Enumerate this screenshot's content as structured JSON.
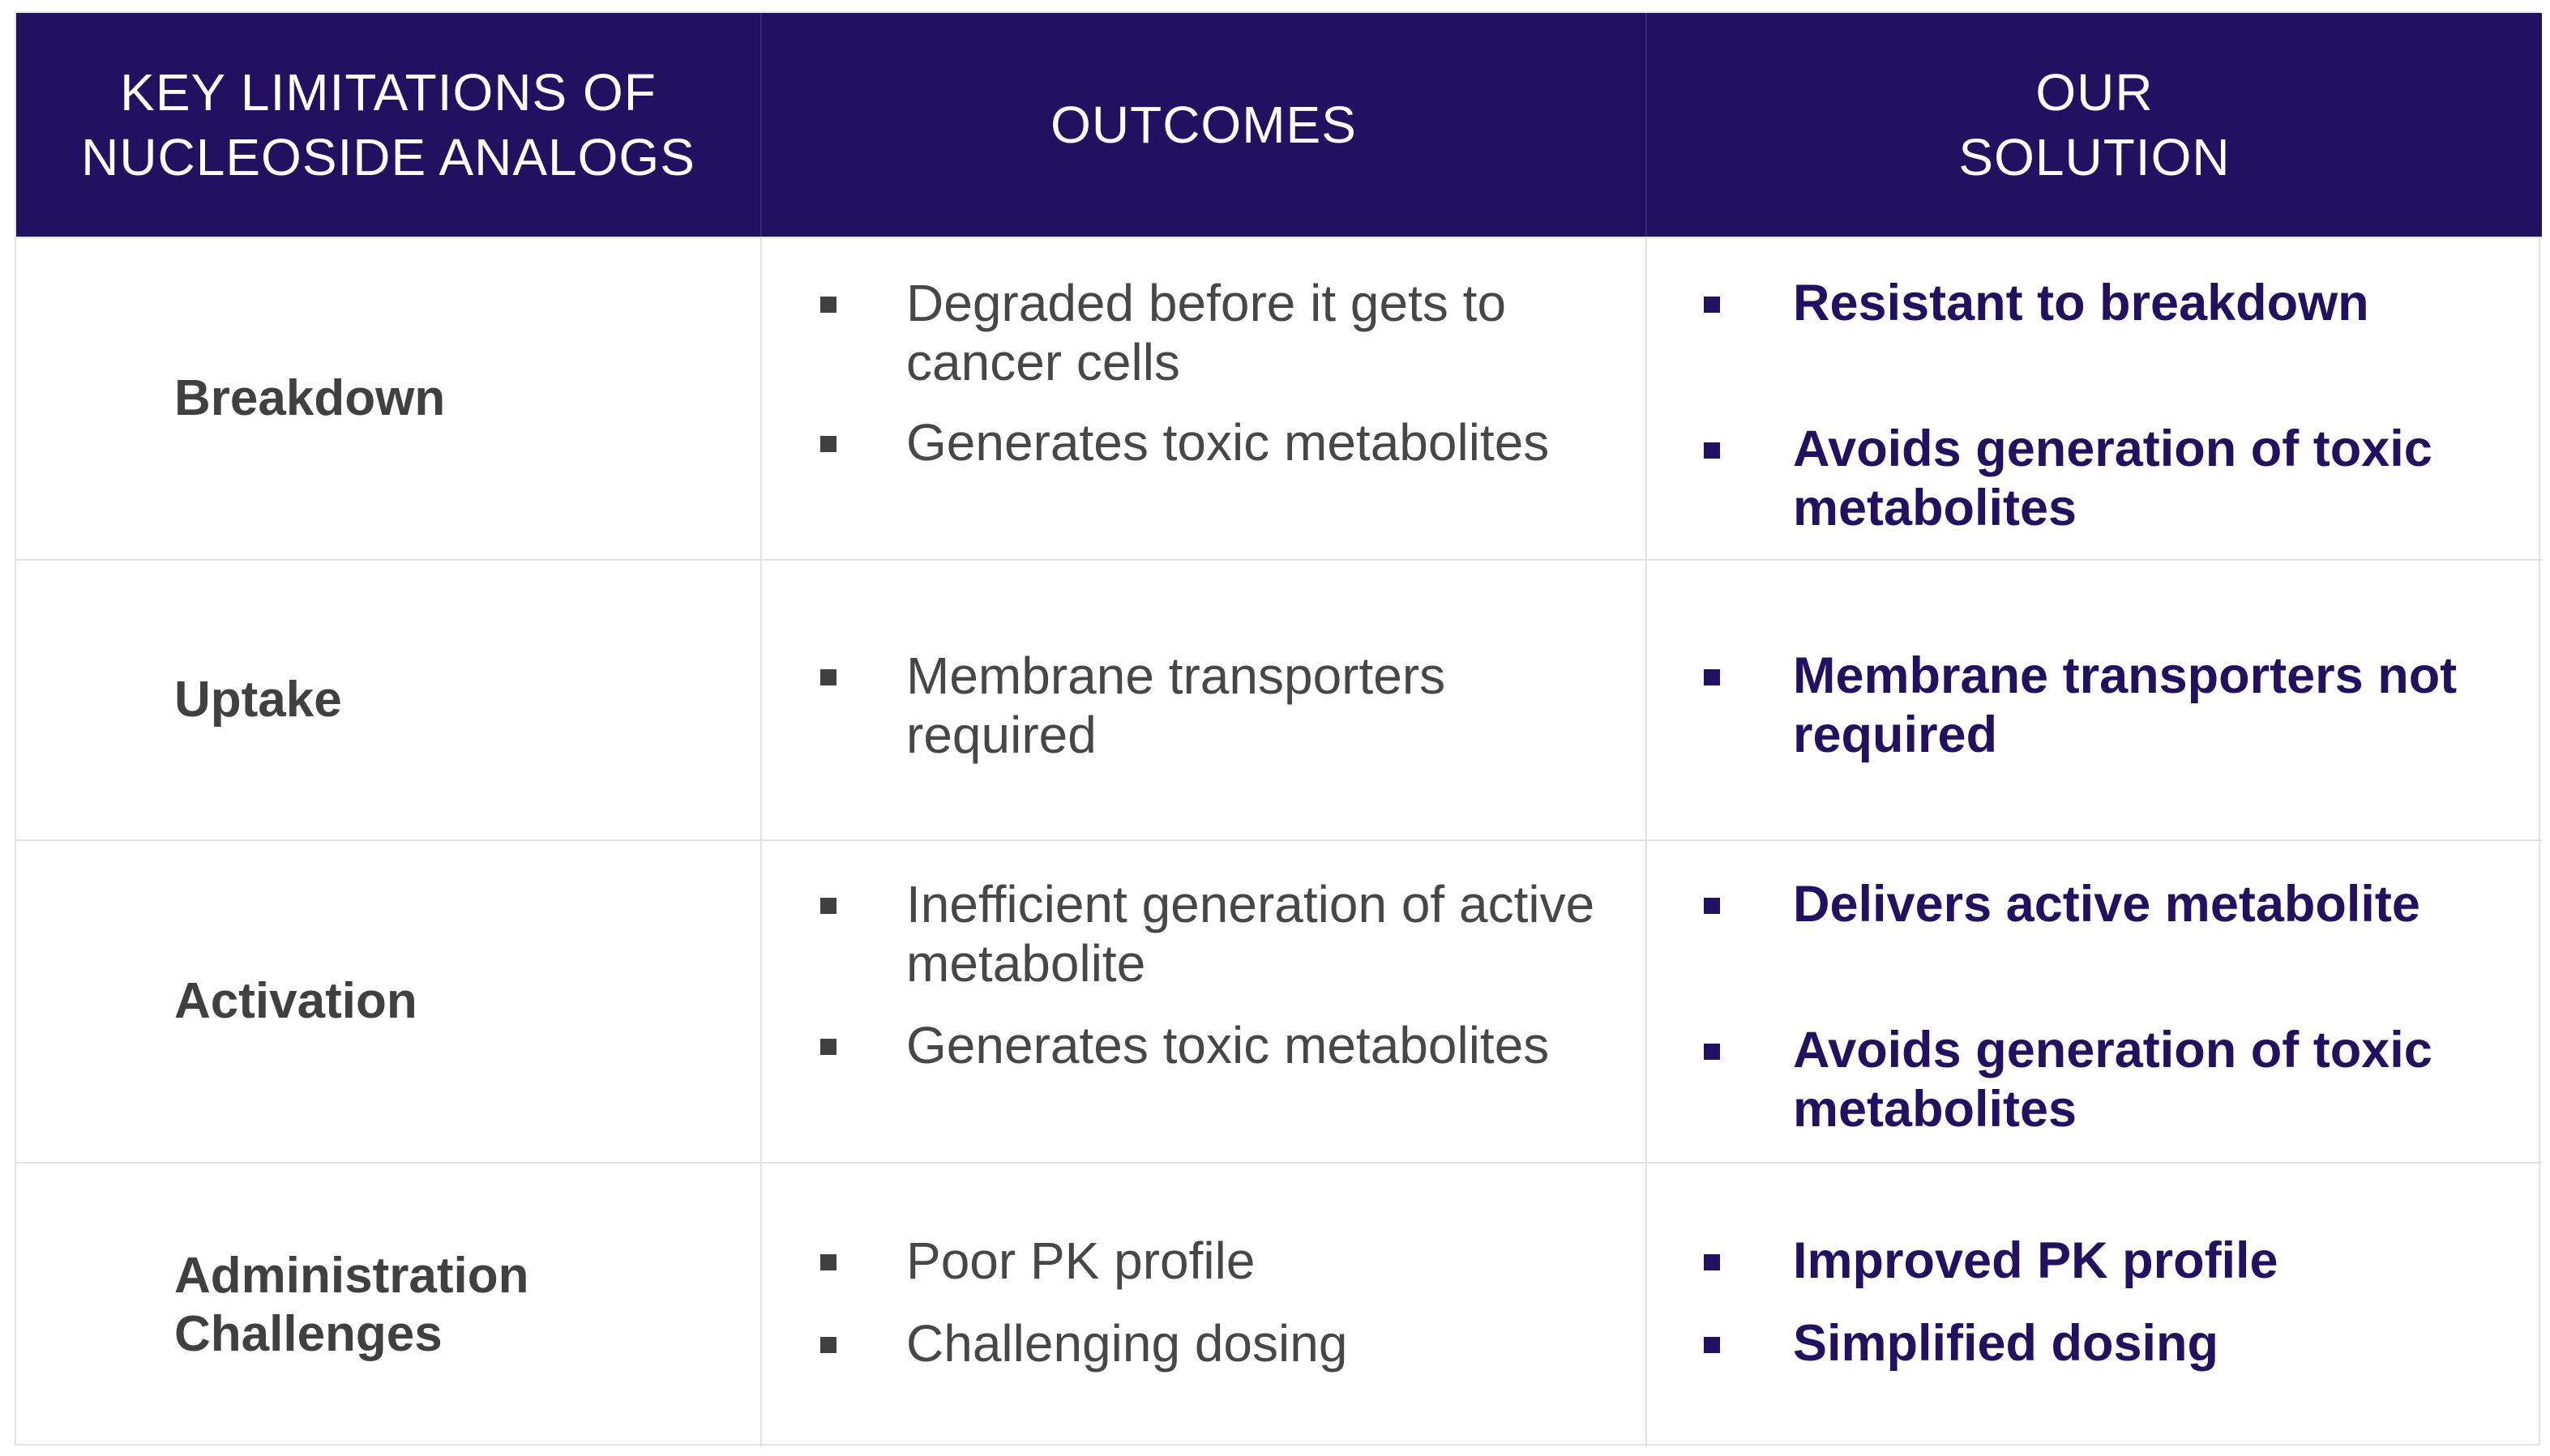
{
  "header": {
    "col1": "KEY LIMITATIONS OF\nNUCLEOSIDE ANALOGS",
    "col2": "OUTCOMES",
    "col3": "OUR\nSOLUTION"
  },
  "rows": [
    {
      "label": "Breakdown",
      "outcomes": [
        "Degraded before it gets to\ncancer cells",
        "Generates toxic metabolites"
      ],
      "solutions": [
        "Resistant to breakdown",
        "Avoids generation of toxic\nmetabolites"
      ]
    },
    {
      "label": "Uptake",
      "outcomes": [
        "Membrane transporters\nrequired"
      ],
      "solutions": [
        "Membrane transporters not\nrequired"
      ]
    },
    {
      "label": "Activation",
      "outcomes": [
        "Inefficient generation of active\nmetabolite",
        "Generates toxic metabolites"
      ],
      "solutions": [
        "Delivers active metabolite",
        "Avoids generation of toxic\nmetabolites"
      ]
    },
    {
      "label": "Administration\nChallenges",
      "outcomes": [
        "Poor PK profile",
        "Challenging dosing"
      ],
      "solutions": [
        "Improved PK profile",
        "Simplified dosing"
      ]
    }
  ]
}
